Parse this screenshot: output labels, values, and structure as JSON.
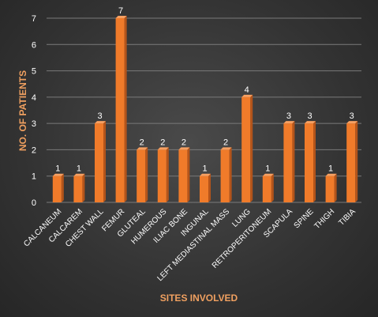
{
  "chart_data": {
    "type": "bar",
    "categories": [
      "CALCANEUM",
      "CALCAREM",
      "CHEST WALL",
      "FEMUR",
      "GLUTEAL",
      "HUMEROUS",
      "ILIAC BONE",
      "INGUNAL",
      "LEFT MEDIASTINAL MASS",
      "LUNG",
      "RETROPERITONEUM",
      "SCAPULA",
      "SPINE",
      "THIGH",
      "TIBIA"
    ],
    "values": [
      1,
      1,
      3,
      7,
      2,
      2,
      2,
      1,
      2,
      4,
      1,
      3,
      3,
      1,
      3
    ],
    "title": "",
    "xlabel": "SITES INVOLVED",
    "ylabel": "NO. OF PATIENTS",
    "ylim": [
      0,
      7
    ],
    "yticks": [
      0,
      1,
      2,
      3,
      4,
      5,
      6,
      7
    ],
    "grid": true,
    "legend": "none",
    "bar_color": "#f07b2a",
    "data_labels": true
  }
}
